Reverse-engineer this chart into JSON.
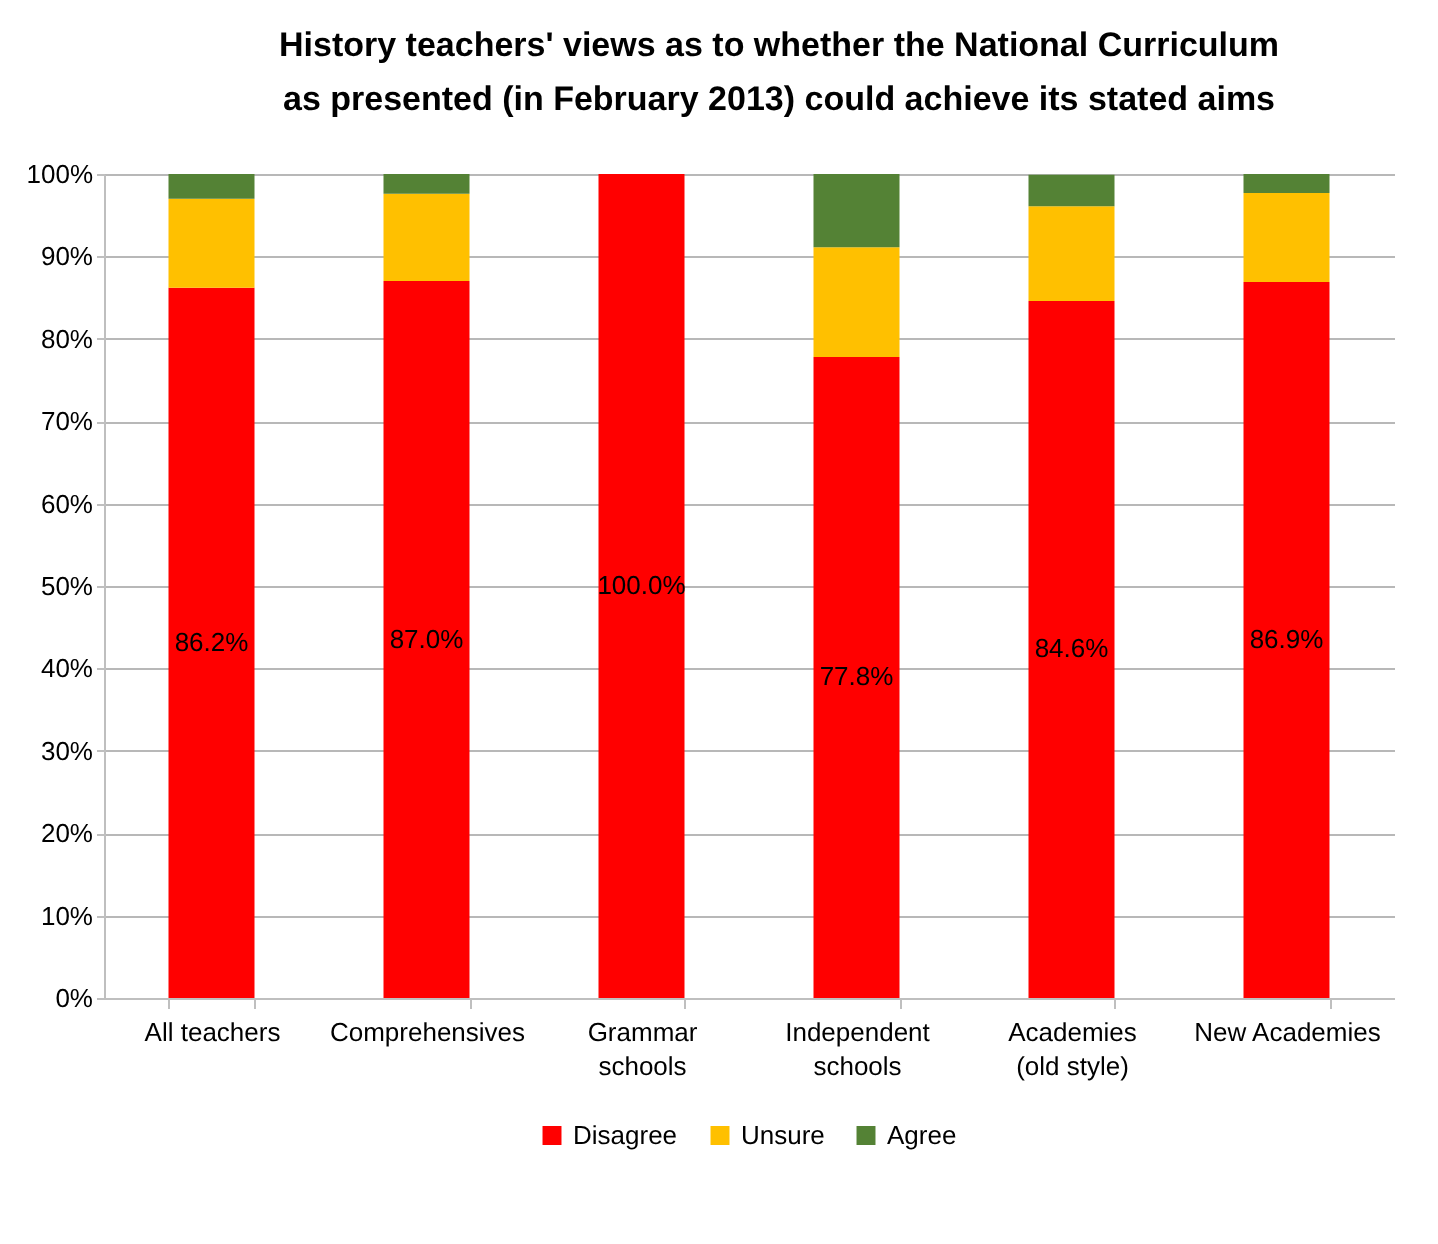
{
  "chart_data": {
    "type": "bar",
    "title": "History teachers' views as to whether the National Curriculum\nas presented (in February 2013) could achieve its stated aims",
    "categories": [
      "All teachers",
      "Comprehensives",
      "Grammar schools",
      "Independent schools",
      "Academies (old style)",
      "New Academies"
    ],
    "stacked": true,
    "series": [
      {
        "name": "Disagree",
        "color": "#ff0000",
        "values": [
          86.2,
          87.0,
          100.0,
          77.8,
          84.6,
          86.9
        ],
        "value_labels": [
          "86.2%",
          "87.0%",
          "100.0%",
          "77.8%",
          "84.6%",
          "86.9%"
        ]
      },
      {
        "name": "Unsure",
        "color": "#ffc000",
        "values": [
          10.8,
          10.6,
          0,
          13.3,
          11.5,
          10.8
        ]
      },
      {
        "name": "Agree",
        "color": "#548235",
        "values": [
          3.0,
          2.4,
          0,
          8.9,
          3.8,
          2.3
        ]
      }
    ],
    "ylim": [
      0,
      100
    ],
    "yticks": [
      {
        "value": 0,
        "label": "0%"
      },
      {
        "value": 10,
        "label": "10%"
      },
      {
        "value": 20,
        "label": "20%"
      },
      {
        "value": 30,
        "label": "30%"
      },
      {
        "value": 40,
        "label": "40%"
      },
      {
        "value": 50,
        "label": "50%"
      },
      {
        "value": 60,
        "label": "60%"
      },
      {
        "value": 70,
        "label": "70%"
      },
      {
        "value": 80,
        "label": "80%"
      },
      {
        "value": 90,
        "label": "90%"
      },
      {
        "value": 100,
        "label": "100%"
      }
    ],
    "grid": "y",
    "legend": "bottom"
  }
}
